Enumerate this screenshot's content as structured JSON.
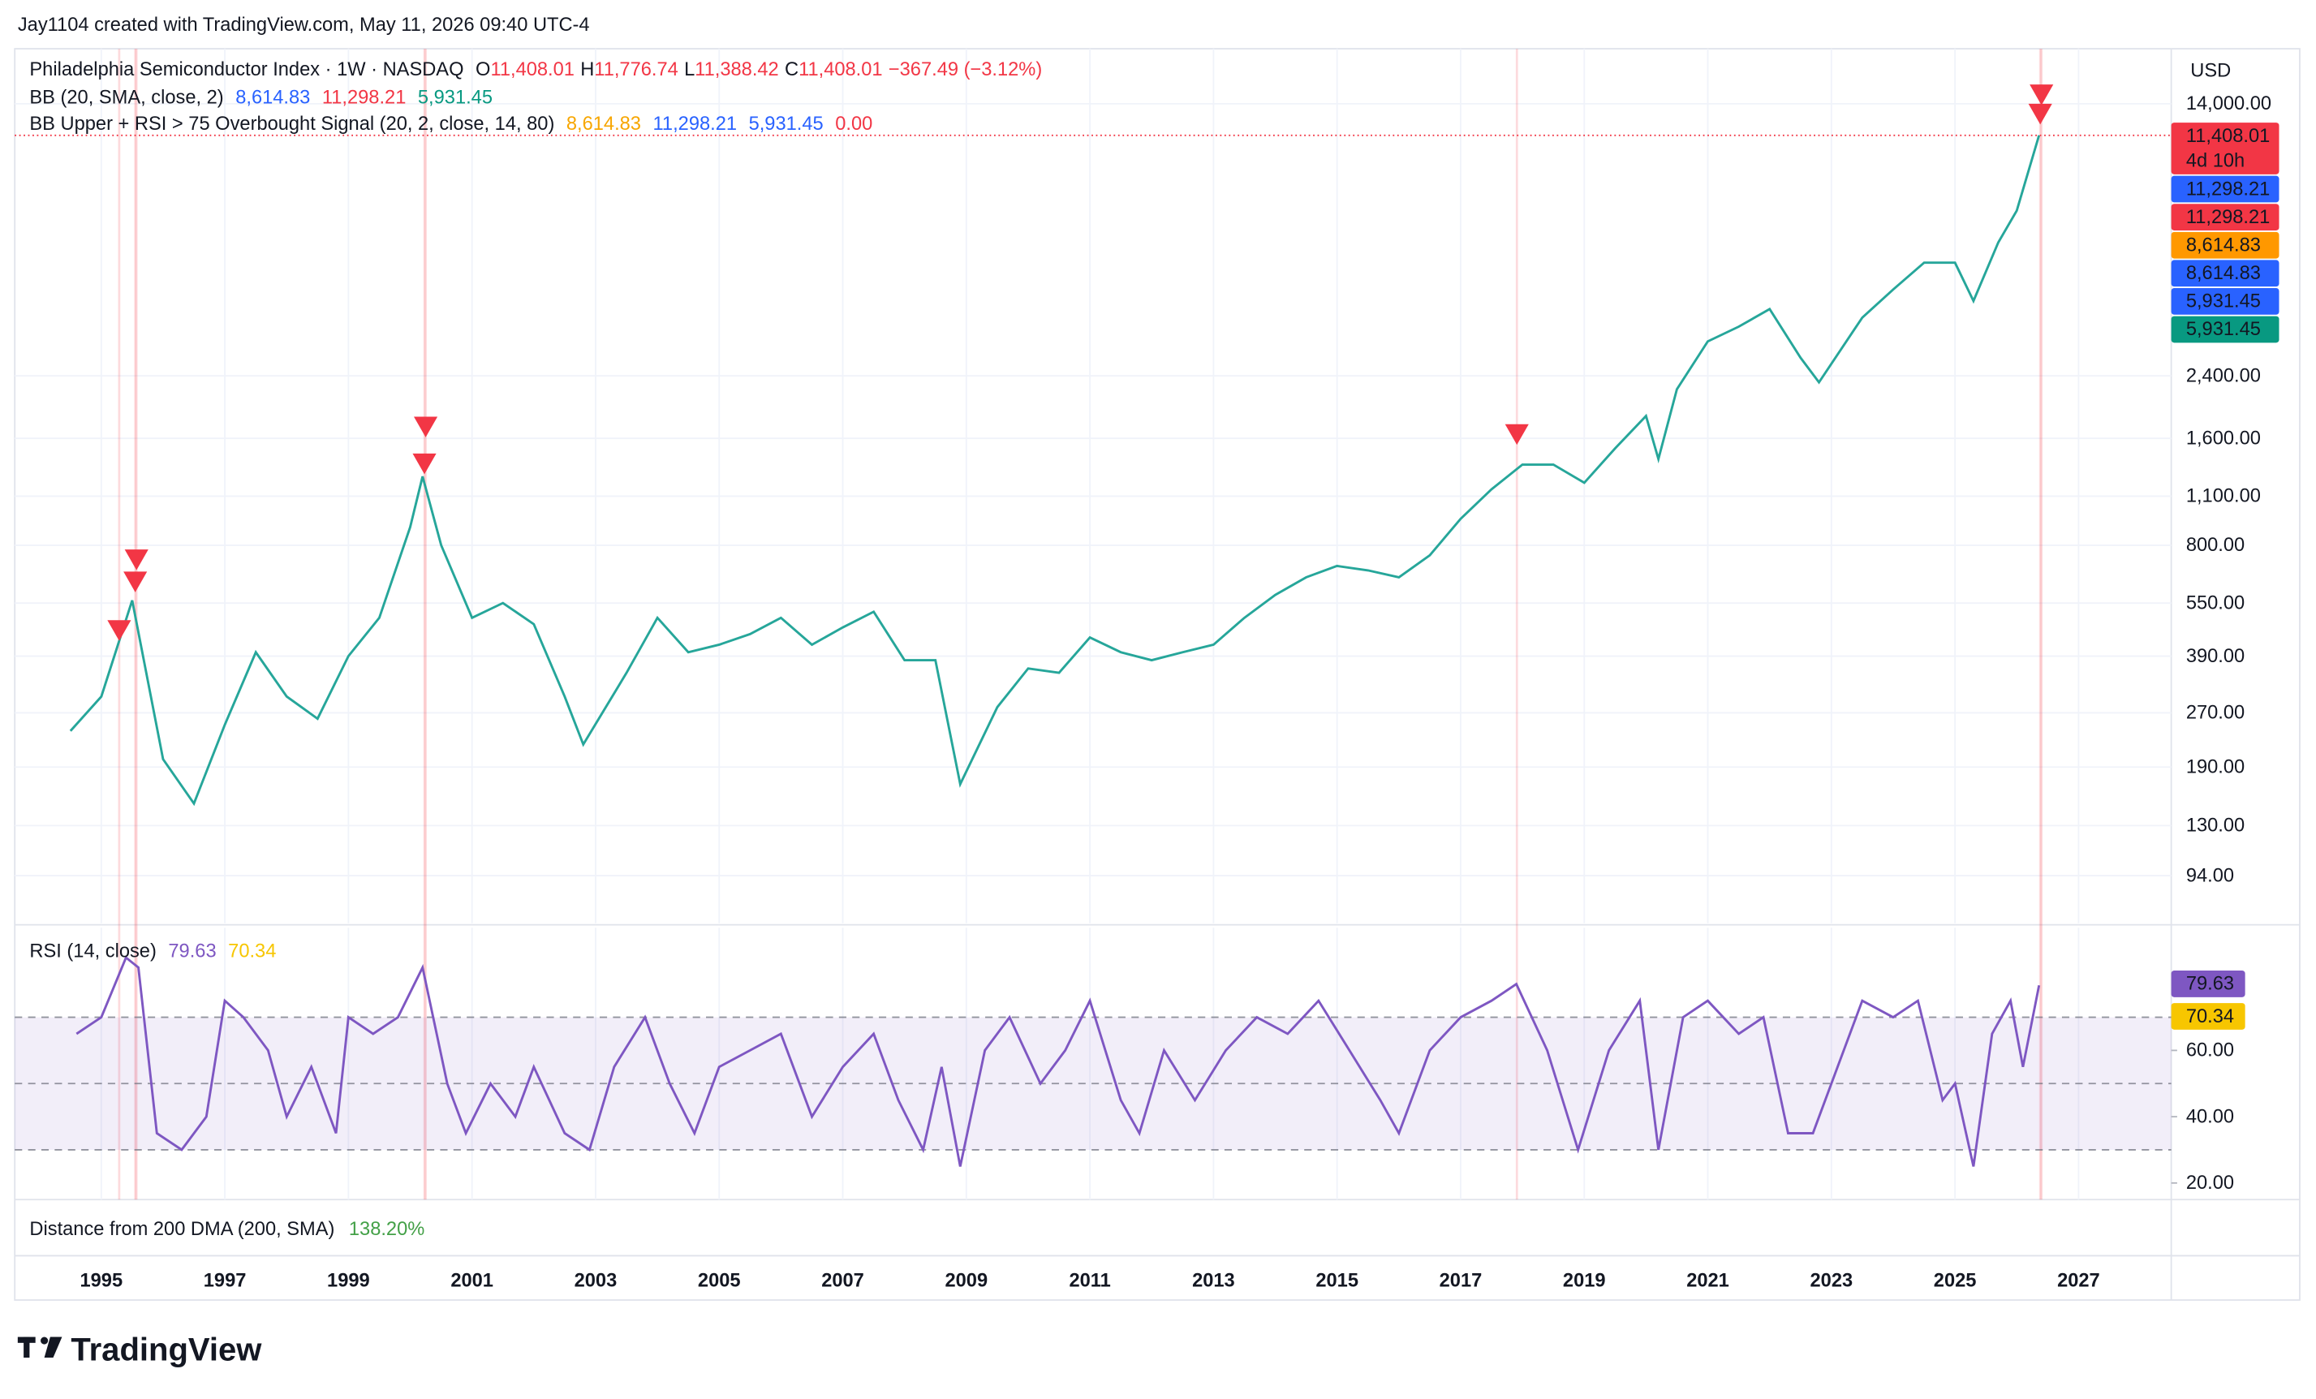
{
  "header": {
    "credit": "Jay1104 created with TradingView.com, May 11, 2026 09:40 UTC-4",
    "logo": "TradingView"
  },
  "chart_data": [
    {
      "type": "line",
      "title": "Philadelphia Semiconductor Index · 1W · NASDAQ",
      "ohlc": [
        {
          "label": "O",
          "value": "11,408.01"
        },
        {
          "label": "H",
          "value": "11,776.74"
        },
        {
          "label": "L",
          "value": "11,388.42"
        },
        {
          "label": "C",
          "value": "11,408.01"
        }
      ],
      "change": "−367.49 (−3.12%)",
      "indicators": [
        {
          "name": "BB (20, SMA, close, 2)",
          "values": [
            {
              "text": "8,614.83",
              "color": "#2962ff"
            },
            {
              "text": "11,298.21",
              "color": "#f23645"
            },
            {
              "text": "5,931.45",
              "color": "#089981"
            }
          ]
        },
        {
          "name": "BB Upper + RSI > 75 Overbought Signal (20, 2, close, 14, 80)",
          "values": [
            {
              "text": "8,614.83",
              "color": "#f7a600"
            },
            {
              "text": "11,298.21",
              "color": "#2962ff"
            },
            {
              "text": "5,931.45",
              "color": "#2962ff"
            },
            {
              "text": "0.00",
              "color": "#f23645"
            }
          ]
        }
      ],
      "currency": "USD",
      "log_scale": true,
      "grid": true,
      "x": [
        1994.5,
        1995.0,
        1995.5,
        1996.0,
        1996.5,
        1997.0,
        1997.5,
        1998.0,
        1998.5,
        1999.0,
        1999.5,
        2000.0,
        2000.2,
        2000.5,
        2001.0,
        2001.5,
        2002.0,
        2002.5,
        2002.8,
        2003.5,
        2004.0,
        2004.5,
        2005.0,
        2005.5,
        2006.0,
        2006.5,
        2007.0,
        2007.5,
        2008.0,
        2008.5,
        2008.9,
        2009.5,
        2010.0,
        2010.5,
        2011.0,
        2011.5,
        2012.0,
        2012.5,
        2013.0,
        2013.5,
        2014.0,
        2014.5,
        2015.0,
        2015.5,
        2016.0,
        2016.5,
        2017.0,
        2017.5,
        2018.0,
        2018.5,
        2019.0,
        2019.5,
        2020.0,
        2020.2,
        2020.5,
        2021.0,
        2021.5,
        2022.0,
        2022.5,
        2022.8,
        2023.5,
        2024.0,
        2024.5,
        2025.0,
        2025.3,
        2025.7,
        2026.0,
        2026.36
      ],
      "series": [
        {
          "color": "#26a69a",
          "values": [
            240,
            300,
            560,
            200,
            150,
            250,
            400,
            300,
            260,
            390,
            500,
            900,
            1250,
            800,
            500,
            550,
            480,
            300,
            220,
            350,
            500,
            400,
            420,
            450,
            500,
            420,
            470,
            520,
            380,
            380,
            170,
            280,
            360,
            350,
            440,
            400,
            380,
            400,
            420,
            500,
            580,
            650,
            700,
            680,
            650,
            750,
            950,
            1150,
            1350,
            1350,
            1200,
            1500,
            1850,
            1400,
            2200,
            3000,
            3300,
            3700,
            2700,
            2300,
            3500,
            4200,
            5000,
            5000,
            3900,
            5700,
            7000,
            11408
          ]
        }
      ],
      "signals": {
        "color": "#f23645",
        "x": [
          1995.29,
          1995.55,
          1995.57,
          2000.23,
          2000.25,
          2017.91,
          2026.38,
          2026.4
        ],
        "values": [
          456,
          625,
          721,
          1343,
          1706,
          1625,
          12970,
          14690
        ]
      },
      "xlim": [
        1993.6,
        2028.5
      ],
      "xticks": [
        1995,
        1997,
        1999,
        2001,
        2003,
        2005,
        2007,
        2009,
        2011,
        2013,
        2015,
        2017,
        2019,
        2021,
        2023,
        2025,
        2027
      ],
      "ylim": [
        69,
        20000
      ],
      "yticks": [
        {
          "value": 14000,
          "label": "14,000.00"
        },
        {
          "value": 2400,
          "label": "2,400.00"
        },
        {
          "value": 1600,
          "label": "1,600.00"
        },
        {
          "value": 1100,
          "label": "1,100.00"
        },
        {
          "value": 800,
          "label": "800.00"
        },
        {
          "value": 550,
          "label": "550.00"
        },
        {
          "value": 390,
          "label": "390.00"
        },
        {
          "value": 270,
          "label": "270.00"
        },
        {
          "value": 190,
          "label": "190.00"
        },
        {
          "value": 130,
          "label": "130.00"
        },
        {
          "value": 94,
          "label": "94.00"
        }
      ],
      "price_labels": [
        {
          "text": "11,408.01",
          "sub": "4d 10h",
          "color": "#f23645"
        },
        {
          "text": "11,298.21",
          "color": "#2962ff"
        },
        {
          "text": "11,298.21",
          "color": "#f23645"
        },
        {
          "text": "8,614.83",
          "color": "#ff9800"
        },
        {
          "text": "8,614.83",
          "color": "#2962ff"
        },
        {
          "text": "5,931.45",
          "color": "#2962ff"
        },
        {
          "text": "5,931.45",
          "color": "#089981"
        }
      ]
    },
    {
      "type": "line",
      "title": "RSI (14, close)",
      "legend_values": [
        {
          "text": "79.63",
          "color": "#7e57c2"
        },
        {
          "text": "70.34",
          "color": "#f7c600"
        }
      ],
      "x": [
        1994.6,
        1995.0,
        1995.4,
        1995.6,
        1995.9,
        1996.3,
        1996.7,
        1997.0,
        1997.3,
        1997.7,
        1998.0,
        1998.4,
        1998.8,
        1999.0,
        1999.4,
        1999.8,
        2000.2,
        2000.6,
        2000.9,
        2001.3,
        2001.7,
        2002.0,
        2002.5,
        2002.9,
        2003.3,
        2003.8,
        2004.2,
        2004.6,
        2005.0,
        2005.5,
        2006.0,
        2006.5,
        2007.0,
        2007.5,
        2007.9,
        2008.3,
        2008.6,
        2008.9,
        2009.3,
        2009.7,
        2010.2,
        2010.6,
        2011.0,
        2011.5,
        2011.8,
        2012.2,
        2012.7,
        2013.2,
        2013.7,
        2014.2,
        2014.7,
        2015.2,
        2015.7,
        2016.0,
        2016.5,
        2017.0,
        2017.5,
        2017.9,
        2018.4,
        2018.9,
        2019.4,
        2019.9,
        2020.2,
        2020.6,
        2021.0,
        2021.5,
        2021.9,
        2022.3,
        2022.7,
        2023.1,
        2023.5,
        2024.0,
        2024.4,
        2024.8,
        2025.0,
        2025.3,
        2025.6,
        2025.9,
        2026.1,
        2026.36
      ],
      "series": [
        {
          "color": "#7e57c2",
          "values": [
            65,
            70,
            88,
            85,
            35,
            30,
            40,
            75,
            70,
            60,
            40,
            55,
            35,
            70,
            65,
            70,
            85,
            50,
            35,
            50,
            40,
            55,
            35,
            30,
            55,
            70,
            50,
            35,
            55,
            60,
            65,
            40,
            55,
            65,
            45,
            30,
            55,
            25,
            60,
            70,
            50,
            60,
            75,
            45,
            35,
            60,
            45,
            60,
            70,
            65,
            75,
            60,
            45,
            35,
            60,
            70,
            75,
            80,
            60,
            30,
            60,
            75,
            30,
            70,
            75,
            65,
            70,
            35,
            35,
            55,
            75,
            70,
            75,
            45,
            50,
            25,
            65,
            75,
            55,
            79.63
          ]
        }
      ],
      "levels": [
        70,
        50,
        30
      ],
      "band_color": "rgba(126,87,194,0.1)",
      "ylim": [
        15,
        97
      ],
      "yticks": [
        {
          "value": 60,
          "label": "60.00"
        },
        {
          "value": 40,
          "label": "40.00"
        },
        {
          "value": 20,
          "label": "20.00"
        }
      ]
    }
  ],
  "distance": {
    "title": "Distance from 200 DMA (200, SMA)",
    "value": "138.20%",
    "color": "#43a047"
  }
}
